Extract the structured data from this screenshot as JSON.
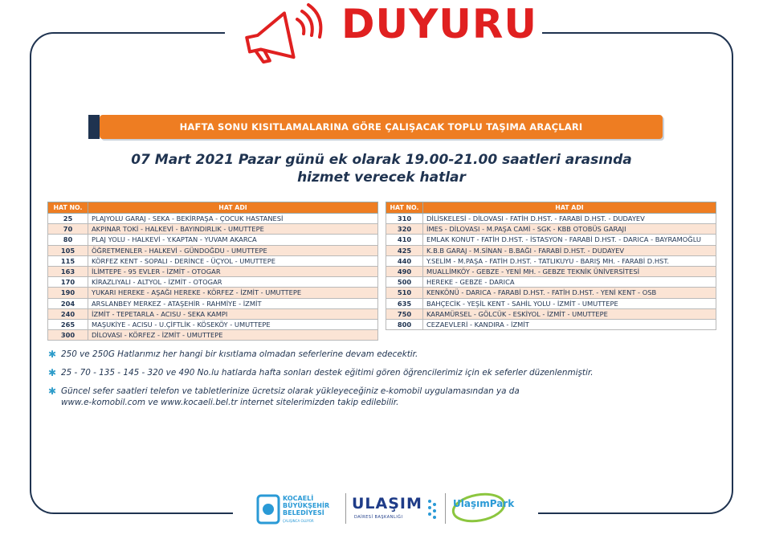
{
  "header": {
    "title": "DUYURU",
    "icon": "megaphone-icon"
  },
  "banner": {
    "text": "HAFTA SONU KISITLAMALARINA GÖRE ÇALIŞACAK TOPLU TAŞIMA ARAÇLARI"
  },
  "subtitle": {
    "line1": "07 Mart 2021 Pazar günü ek olarak 19.00-21.00 saatleri arasında",
    "line2": "hizmet verecek hatlar"
  },
  "table_headers": {
    "no": "HAT NO.",
    "name": "HAT ADI"
  },
  "table_left": [
    {
      "no": "25",
      "name": "PLAJYOLU GARAJ - SEKA - BEKİRPAŞA - ÇOCUK HASTANESİ"
    },
    {
      "no": "70",
      "name": "AKPINAR TOKİ - HALKEVİ - BAYINDIRLIK - UMUTTEPE"
    },
    {
      "no": "80",
      "name": "PLAJ YOLU - HALKEVİ - Y.KAPTAN - YUVAM AKARCA"
    },
    {
      "no": "105",
      "name": "ÖĞRETMENLER - HALKEVİ - GÜNDOĞDU - UMUTTEPE"
    },
    {
      "no": "115",
      "name": "KÖRFEZ KENT - SOPALI - DERİNCE - ÜÇYOL - UMUTTEPE"
    },
    {
      "no": "163",
      "name": "İLİMTEPE - 95 EVLER - İZMİT - OTOGAR"
    },
    {
      "no": "170",
      "name": "KİRAZLIYALI - ALTYOL - İZMİT - OTOGAR"
    },
    {
      "no": "190",
      "name": "YUKARI HEREKE - AŞAĞI HEREKE - KÖRFEZ - İZMİT - UMUTTEPE"
    },
    {
      "no": "204",
      "name": "ARSLANBEY MERKEZ - ATAŞEHİR - RAHMİYE - İZMİT"
    },
    {
      "no": "240",
      "name": "İZMİT - TEPETARLA - ACISU - SEKA KAMPI"
    },
    {
      "no": "265",
      "name": "MAŞUKİYE - ACISU - U.ÇİFTLİK - KÖSEKÖY - UMUTTEPE"
    },
    {
      "no": "300",
      "name": "DİLOVASI - KÖRFEZ - İZMİT - UMUTTEPE"
    }
  ],
  "table_right": [
    {
      "no": "310",
      "name": "DİLİSKELESİ - DİLOVASI - FATİH D.HST. - FARABİ D.HST. - DUDAYEV"
    },
    {
      "no": "320",
      "name": "İMES - DİLOVASI - M.PAŞA CAMİ - SGK - KBB OTOBÜS GARAJI"
    },
    {
      "no": "410",
      "name": "EMLAK KONUT - FATİH D.HST. - İSTASYON - FARABİ D.HST. - DARICA - BAYRAMOĞLU"
    },
    {
      "no": "425",
      "name": "K.B.B GARAJ - M.SİNAN - B.BAĞI - FARABİ D.HST. - DUDAYEV"
    },
    {
      "no": "440",
      "name": "Y.SELİM - M.PAŞA - FATİH D.HST. - TATLIKUYU - BARIŞ MH. - FARABİ D.HST."
    },
    {
      "no": "490",
      "name": "MUALLİMKÖY - GEBZE - YENİ MH. - GEBZE TEKNİK ÜNİVERSİTESİ"
    },
    {
      "no": "500",
      "name": "HEREKE - GEBZE - DARICA"
    },
    {
      "no": "510",
      "name": "KENKÖNÜ - DARICA - FARABİ D.HST. - FATİH D.HST. - YENİ KENT - OSB"
    },
    {
      "no": "635",
      "name": "BAHÇECİK - YEŞİL KENT - SAHİL YOLU - İZMİT - UMUTTEPE"
    },
    {
      "no": "750",
      "name": "KARAMÜRSEL - GÖLCÜK - ESKİYOL - İZMİT - UMUTTEPE"
    },
    {
      "no": "800",
      "name": "CEZAEVLERİ - KANDIRA - İZMİT"
    }
  ],
  "notes": [
    "250 ve 250G Hatlarımız her hangi bir kısıtlama olmadan seferlerine devam edecektir.",
    "25 - 70 - 135 - 145 - 320 ve 490 No.lu hatlarda hafta sonları destek eğitimi gören öğrencilerimiz için ek seferler düzenlenmiştir.",
    "Güncel sefer saatleri telefon ve tabletlerinize ücretsiz olarak yükleyeceğiniz e-komobil uygulamasından ya da",
    "www.e-komobil.com ve www.kocaeli.bel.tr internet sitelerimizden takip edilebilir."
  ],
  "logos": {
    "kb_line1": "KOCAELİ",
    "kb_line2": "BÜYÜKŞEHİR",
    "kb_line3": "BELEDİYESİ",
    "kb_sub": "ÇALIŞINCA OLUYOR",
    "ulasim": "ULAŞIM",
    "ulasim_sub": "DAİRESİ BAŞKANLIĞI",
    "park": "UlaşımPark"
  },
  "colors": {
    "accent": "#ee7d22",
    "navy": "#1f3350",
    "title_red": "#e02020",
    "star": "#2e9cca",
    "row_alt": "#fbe4d5"
  }
}
